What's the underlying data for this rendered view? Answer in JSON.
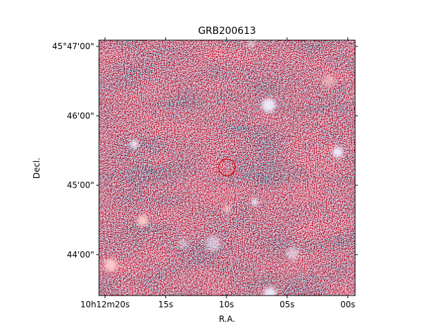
{
  "chart_data": {
    "type": "image",
    "title": "GRB200613",
    "xlabel": "R.A.",
    "ylabel": "Decl.",
    "xlim": [
      20.5,
      -0.6
    ],
    "xticks": [
      {
        "value": 20,
        "label": "10h12m20s"
      },
      {
        "value": 15,
        "label": "15s"
      },
      {
        "value": 10,
        "label": "10s"
      },
      {
        "value": 5,
        "label": "05s"
      },
      {
        "value": 0,
        "label": "00s"
      }
    ],
    "ylim": [
      43.41,
      47.09
    ],
    "yticks": [
      {
        "value": 47,
        "label": "45°47'00\""
      },
      {
        "value": 46,
        "label": "46'00\""
      },
      {
        "value": 45,
        "label": "45'00\""
      },
      {
        "value": 44,
        "label": "44'00\""
      }
    ]
  }
}
